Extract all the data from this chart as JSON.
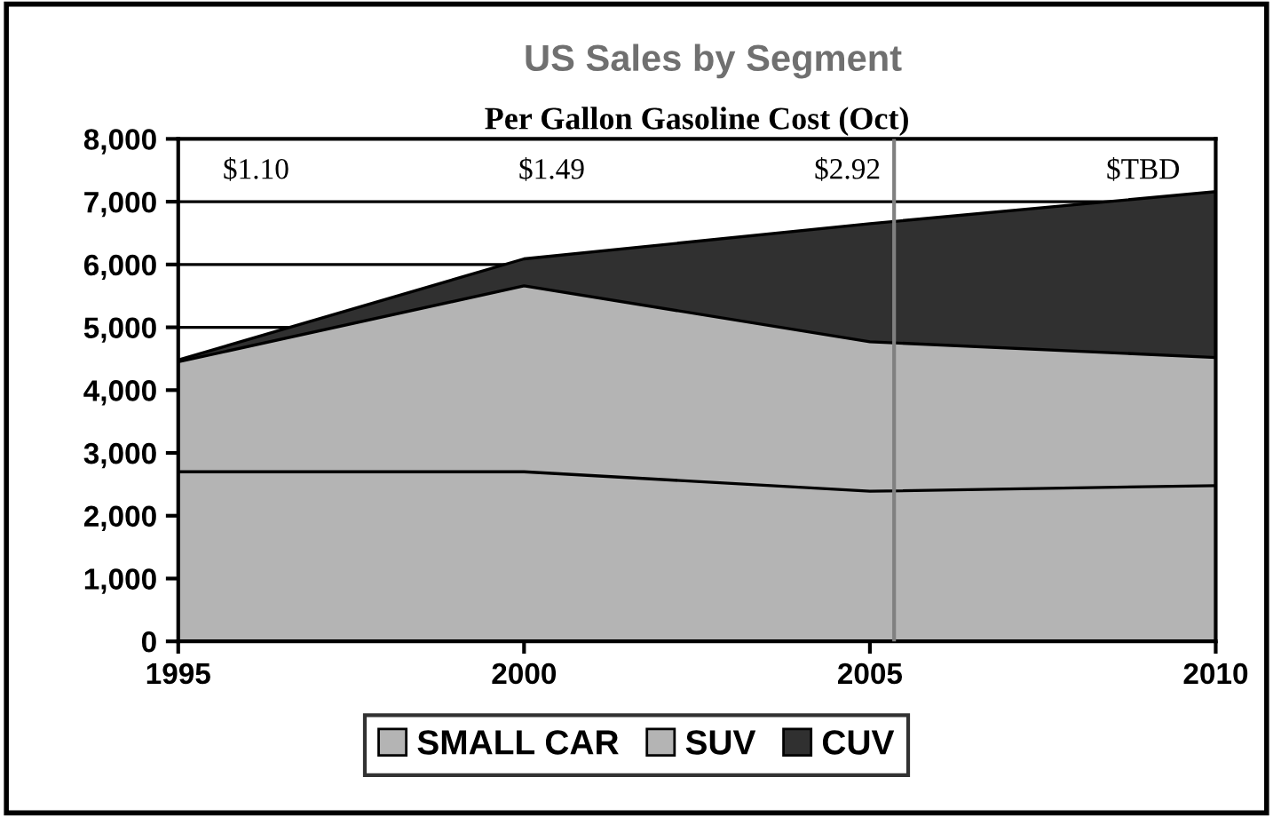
{
  "chart_data": {
    "type": "area",
    "stacked": true,
    "title": "US Sales by Segment",
    "subtitle": "Per Gallon Gasoline Cost (Oct)",
    "x": [
      1995,
      2000,
      2005,
      2010
    ],
    "series": [
      {
        "name": "SMALL CAR",
        "color": "#b4b4b4",
        "values": [
          2700,
          2700,
          2390,
          2480
        ]
      },
      {
        "name": "SUV",
        "color": "#b4b4b4",
        "values": [
          1750,
          2960,
          2380,
          2040
        ]
      },
      {
        "name": "CUV",
        "color": "#303030",
        "values": [
          30,
          430,
          1880,
          2640
        ]
      }
    ],
    "xlim": [
      1995,
      2010
    ],
    "xticks": [
      1995,
      2000,
      2005,
      2010
    ],
    "ylim": [
      0,
      8000
    ],
    "yticks": [
      {
        "value": 0,
        "label": "0"
      },
      {
        "value": 1000,
        "label": "1,000"
      },
      {
        "value": 2000,
        "label": "2,000"
      },
      {
        "value": 3000,
        "label": "3,000"
      },
      {
        "value": 4000,
        "label": "4,000"
      },
      {
        "value": 5000,
        "label": "5,000"
      },
      {
        "value": 6000,
        "label": "6,000"
      },
      {
        "value": 7000,
        "label": "7,000"
      },
      {
        "value": 8000,
        "label": "8,000"
      }
    ],
    "ref_lines": [
      {
        "axis": "x",
        "value": 2005.35,
        "color": "#808080"
      }
    ],
    "annotations": [
      "$1.10",
      "$1.49",
      "$2.92",
      "$TBD"
    ],
    "grid": "y",
    "legend": "bottom"
  }
}
